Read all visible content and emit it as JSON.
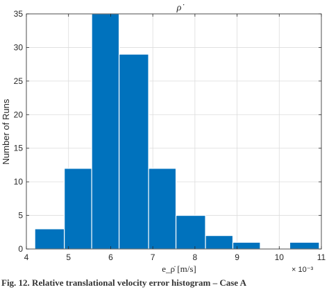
{
  "chart_data": {
    "type": "bar",
    "title": "ρ̇",
    "xlabel": "e_ρ̇ [m/s]",
    "ylabel": "Number of Runs",
    "x_exponent": "× 10⁻³",
    "bins": [
      {
        "start": 4.2,
        "end": 4.9,
        "count": 3
      },
      {
        "start": 4.9,
        "end": 5.55,
        "count": 12
      },
      {
        "start": 5.55,
        "end": 6.2,
        "count": 35
      },
      {
        "start": 6.2,
        "end": 6.9,
        "count": 29
      },
      {
        "start": 6.9,
        "end": 7.55,
        "count": 12
      },
      {
        "start": 7.55,
        "end": 8.25,
        "count": 5
      },
      {
        "start": 8.25,
        "end": 8.9,
        "count": 2
      },
      {
        "start": 8.9,
        "end": 9.55,
        "count": 1
      },
      {
        "start": 9.55,
        "end": 10.25,
        "count": 0
      },
      {
        "start": 10.25,
        "end": 10.95,
        "count": 1
      }
    ],
    "xlim": [
      4,
      11
    ],
    "ylim": [
      0,
      35
    ],
    "xticks": [
      4,
      5,
      6,
      7,
      8,
      9,
      10,
      11
    ],
    "yticks": [
      0,
      5,
      10,
      15,
      20,
      25,
      30,
      35
    ],
    "grid": true,
    "bar_color": "#0072BD"
  },
  "caption": "Fig. 12. Relative translational velocity error histogram – Case A"
}
